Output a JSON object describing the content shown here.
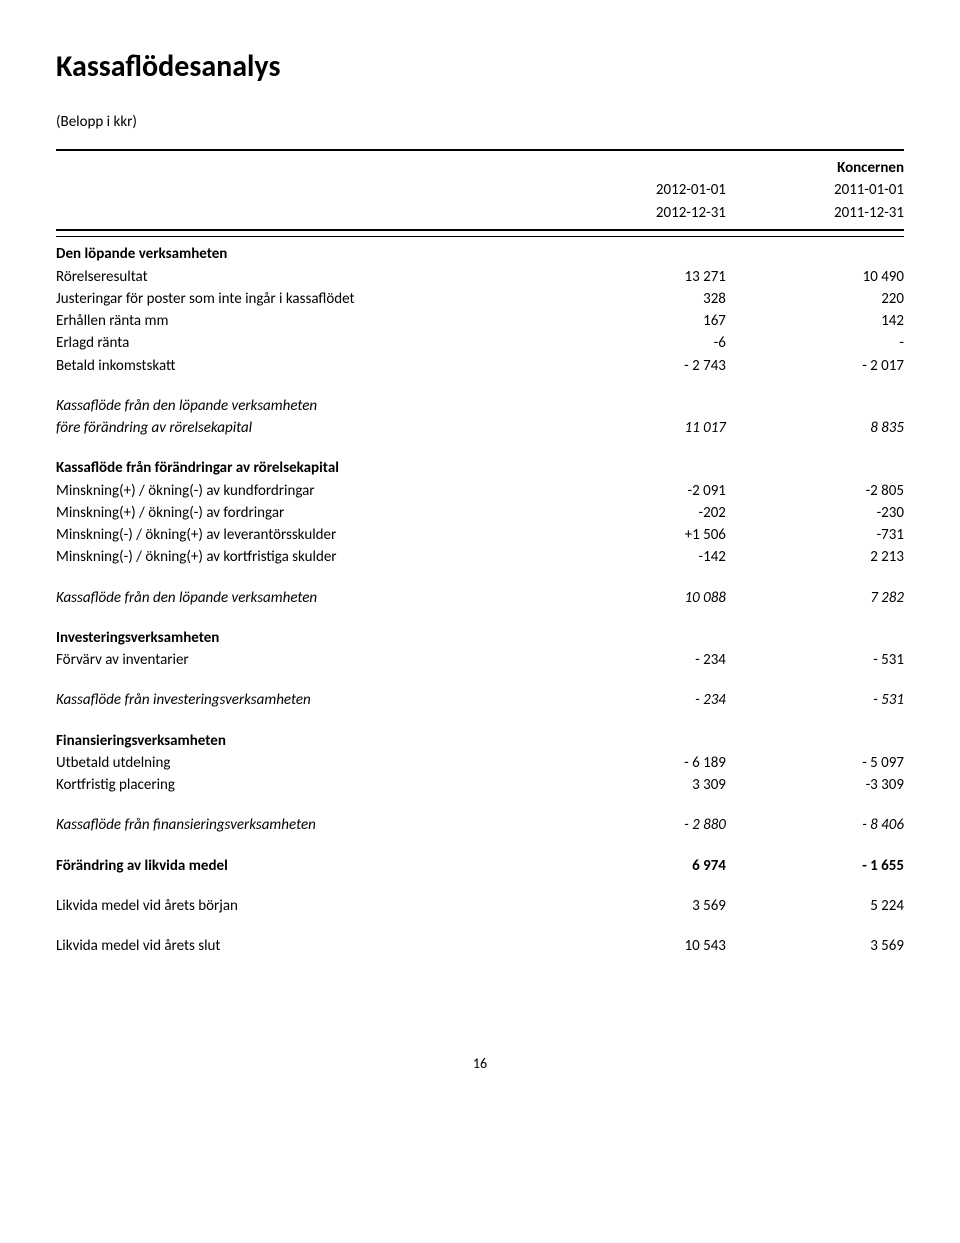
{
  "title": "Kassaflödesanalys",
  "subnote": "(Belopp i kkr)",
  "columns": {
    "group": "Koncernen",
    "period1": {
      "start": "2012-01-01",
      "end": "2012-12-31"
    },
    "period2": {
      "start": "2011-01-01",
      "end": "2011-12-31"
    }
  },
  "sections": [
    {
      "heading": "Den löpande verksamheten",
      "rows": [
        {
          "label": "Rörelseresultat",
          "v1": "13 271",
          "v2": "10 490"
        },
        {
          "label": "Justeringar för poster som inte ingår i kassaflödet",
          "v1": "328",
          "v2": "220"
        },
        {
          "label": "Erhållen ränta mm",
          "v1": "167",
          "v2": "142"
        },
        {
          "label": "Erlagd ränta",
          "v1": "-6",
          "v2": "-"
        },
        {
          "label": "Betald inkomstskatt",
          "v1": "- 2 743",
          "v2": "- 2 017"
        }
      ]
    },
    {
      "italicTotals": [
        {
          "label": "Kassaflöde från den löpande verksamheten",
          "v1": "",
          "v2": ""
        },
        {
          "label": "före förändring av rörelsekapital",
          "v1": "11 017",
          "v2": "8 835"
        }
      ]
    },
    {
      "heading": "Kassaflöde från förändringar av rörelsekapital",
      "rows": [
        {
          "label": "Minskning(+) / ökning(-) av kundfordringar",
          "v1": "-2 091",
          "v2": "-2 805"
        },
        {
          "label": "Minskning(+) / ökning(-) av fordringar",
          "v1": "-202",
          "v2": "-230"
        },
        {
          "label": "Minskning(-) / ökning(+) av leverantörsskulder",
          "v1": "+1 506",
          "v2": "-731"
        },
        {
          "label": "Minskning(-) / ökning(+) av kortfristiga skulder",
          "v1": "-142",
          "v2": "2 213"
        }
      ]
    },
    {
      "italicTotals": [
        {
          "label": "Kassaflöde från den löpande verksamheten",
          "v1": "10 088",
          "v2": "7 282"
        }
      ]
    },
    {
      "heading": "Investeringsverksamheten",
      "rows": [
        {
          "label": "Förvärv av inventarier",
          "v1": "- 234",
          "v2": "- 531"
        }
      ]
    },
    {
      "italicTotals": [
        {
          "label": "Kassaflöde från investeringsverksamheten",
          "v1": "- 234",
          "v2": "- 531"
        }
      ]
    },
    {
      "heading": "Finansieringsverksamheten",
      "rows": [
        {
          "label": "Utbetald utdelning",
          "v1": "- 6 189",
          "v2": "- 5 097"
        },
        {
          "label": "Kortfristig placering",
          "v1": "3 309",
          "v2": "-3 309"
        }
      ]
    },
    {
      "italicTotals": [
        {
          "label": "Kassaflöde från finansieringsverksamheten",
          "v1": "- 2 880",
          "v2": "- 8 406"
        }
      ]
    },
    {
      "boldTotals": [
        {
          "label": "Förändring av likvida medel",
          "v1": "6 974",
          "v2": "- 1 655"
        }
      ]
    },
    {
      "plainRows": [
        {
          "label": "Likvida medel vid årets början",
          "v1": "3 569",
          "v2": "5 224"
        }
      ]
    },
    {
      "plainRows": [
        {
          "label": "Likvida medel vid årets slut",
          "v1": "10 543",
          "v2": "3 569"
        }
      ]
    }
  ],
  "pageNumber": "16"
}
